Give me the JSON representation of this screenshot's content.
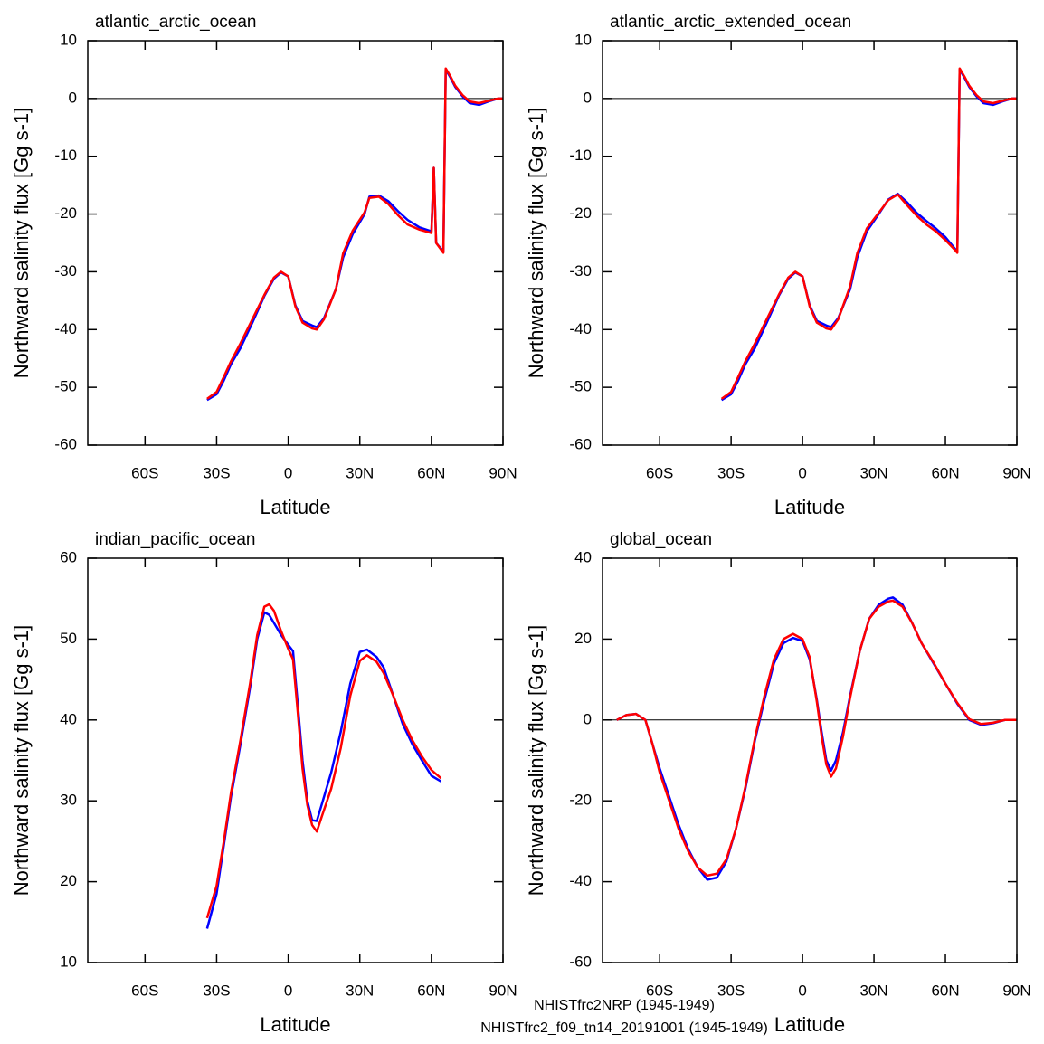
{
  "chart_data": [
    {
      "type": "line",
      "title": "atlantic_arctic_ocean",
      "xlabel": "Latitude",
      "ylabel": "Northward salinity flux [Gg s-1]",
      "x": [
        -34,
        -30,
        -27,
        -24,
        -20,
        -15,
        -10,
        -6,
        -3,
        0,
        3,
        6,
        10,
        12,
        15,
        20,
        23,
        27,
        32,
        34,
        38,
        42,
        46,
        50,
        55,
        60,
        61,
        62,
        65,
        66,
        68,
        70,
        73,
        76,
        80,
        84,
        88,
        90
      ],
      "series": [
        {
          "values": [
            -52.2,
            -51.2,
            -48.8,
            -46,
            -43.2,
            -38.8,
            -34.2,
            -31.2,
            -30.1,
            -30.8,
            -35.8,
            -38.5,
            -39.3,
            -39.6,
            -38,
            -33,
            -27.5,
            -23.5,
            -20,
            -17,
            -16.8,
            -17.8,
            -19.5,
            -21,
            -22.3,
            -23,
            -12,
            -25,
            -26.5,
            5,
            3.6,
            2,
            0.4,
            -0.8,
            -1.1,
            -0.5,
            0,
            0
          ]
        },
        {
          "values": [
            -52,
            -50.8,
            -48.2,
            -45.5,
            -42.4,
            -38.2,
            -34,
            -31,
            -30,
            -30.8,
            -36,
            -38.8,
            -39.8,
            -40,
            -38.2,
            -33,
            -26.8,
            -22.9,
            -19.7,
            -17.2,
            -17,
            -18.3,
            -20.2,
            -21.8,
            -22.7,
            -23.3,
            -12,
            -25,
            -26.7,
            5.2,
            3.8,
            2.2,
            0.6,
            -0.5,
            -0.8,
            -0.4,
            0,
            0
          ]
        }
      ],
      "xlim": [
        -84,
        90
      ],
      "ylim": [
        -60,
        10
      ],
      "xticks": [
        {
          "value": -60,
          "label": "60S"
        },
        {
          "value": -30,
          "label": "30S"
        },
        0,
        {
          "value": 30,
          "label": "30N"
        },
        {
          "value": 60,
          "label": "60N"
        },
        {
          "value": 90,
          "label": "90N"
        }
      ],
      "yticks": [
        -60,
        -50,
        -40,
        -30,
        -20,
        -10,
        0,
        10
      ],
      "reference_line": 0
    },
    {
      "type": "line",
      "title": "atlantic_arctic_extended_ocean",
      "xlabel": "Latitude",
      "ylabel": "Northward salinity flux [Gg s-1]",
      "x": [
        -34,
        -30,
        -27,
        -24,
        -20,
        -15,
        -10,
        -6,
        -3,
        0,
        3,
        6,
        10,
        12,
        15,
        20,
        23,
        27,
        32,
        36,
        40,
        44,
        48,
        52,
        56,
        60,
        64,
        65,
        66,
        68,
        70,
        73,
        76,
        80,
        84,
        88,
        90
      ],
      "series": [
        {
          "values": [
            -52.2,
            -51.2,
            -48.8,
            -46,
            -43.2,
            -38.8,
            -34.2,
            -31.2,
            -30.1,
            -30.8,
            -35.8,
            -38.5,
            -39.3,
            -39.6,
            -38,
            -33,
            -27.5,
            -23,
            -20,
            -17.5,
            -16.5,
            -18,
            -19.8,
            -21.2,
            -22.5,
            -24,
            -26,
            -26.5,
            5,
            3.6,
            2,
            0.4,
            -0.8,
            -1.1,
            -0.5,
            0,
            0
          ]
        },
        {
          "values": [
            -52,
            -50.8,
            -48.2,
            -45.5,
            -42.4,
            -38.2,
            -34,
            -31,
            -30,
            -30.8,
            -36,
            -38.8,
            -39.8,
            -40,
            -38.2,
            -32.5,
            -26.8,
            -22.5,
            -19.8,
            -17.6,
            -16.6,
            -18.5,
            -20.3,
            -21.8,
            -23,
            -24.5,
            -26.2,
            -26.7,
            5.2,
            3.8,
            2.2,
            0.6,
            -0.5,
            -0.8,
            -0.4,
            0,
            0
          ]
        }
      ],
      "xlim": [
        -84,
        90
      ],
      "ylim": [
        -60,
        10
      ],
      "xticks": [
        {
          "value": -60,
          "label": "60S"
        },
        {
          "value": -30,
          "label": "30S"
        },
        0,
        {
          "value": 30,
          "label": "30N"
        },
        {
          "value": 60,
          "label": "60N"
        },
        {
          "value": 90,
          "label": "90N"
        }
      ],
      "yticks": [
        -60,
        -50,
        -40,
        -30,
        -20,
        -10,
        0,
        10
      ],
      "reference_line": 0
    },
    {
      "type": "line",
      "title": "indian_pacific_ocean",
      "xlabel": "Latitude",
      "ylabel": "Northward salinity flux [Gg s-1]",
      "x": [
        -34,
        -30,
        -27,
        -24,
        -20,
        -16,
        -13,
        -10,
        -8,
        -6,
        -3,
        0,
        2,
        4,
        6,
        8,
        10,
        12,
        14,
        18,
        22,
        26,
        30,
        33,
        37,
        40,
        44,
        48,
        52,
        56,
        60,
        64
      ],
      "series": [
        {
          "values": [
            14.2,
            18.5,
            24.5,
            30.5,
            37,
            44,
            50,
            53.3,
            53,
            52,
            50.5,
            49.3,
            48.5,
            42,
            35,
            30,
            27.6,
            27.5,
            29.5,
            33.5,
            38.5,
            44.5,
            48.4,
            48.7,
            47.8,
            46.5,
            43,
            39.5,
            37,
            35,
            33.1,
            32.4
          ]
        },
        {
          "values": [
            15.5,
            19.5,
            25,
            31,
            37.5,
            44.5,
            50.5,
            54,
            54.3,
            53.5,
            51,
            48.8,
            47.5,
            41,
            34,
            29.5,
            27,
            26.2,
            28,
            31.5,
            36.5,
            43,
            47.3,
            48,
            47.2,
            45.8,
            43,
            40,
            37.5,
            35.5,
            33.8,
            32.8
          ]
        }
      ],
      "xlim": [
        -84,
        90
      ],
      "ylim": [
        10,
        60
      ],
      "xticks": [
        {
          "value": -60,
          "label": "60S"
        },
        {
          "value": -30,
          "label": "30S"
        },
        0,
        {
          "value": 30,
          "label": "30N"
        },
        {
          "value": 60,
          "label": "60N"
        },
        {
          "value": 90,
          "label": "90N"
        }
      ],
      "yticks": [
        10,
        20,
        30,
        40,
        50,
        60
      ]
    },
    {
      "type": "line",
      "title": "global_ocean",
      "xlabel": "Latitude",
      "ylabel": "Northward salinity flux [Gg s-1]",
      "x": [
        -78,
        -74,
        -70,
        -66,
        -63,
        -60,
        -56,
        -52,
        -48,
        -44,
        -40,
        -36,
        -32,
        -28,
        -24,
        -20,
        -16,
        -12,
        -8,
        -4,
        0,
        3,
        6,
        8,
        10,
        12,
        14,
        17,
        20,
        24,
        28,
        32,
        36,
        38,
        42,
        46,
        50,
        55,
        60,
        65,
        70,
        75,
        80,
        85,
        90
      ],
      "series": [
        {
          "values": [
            0,
            1.2,
            1.5,
            0,
            -6,
            -12,
            -19,
            -26,
            -32,
            -36.5,
            -39.5,
            -39,
            -35,
            -27,
            -17,
            -5,
            5,
            14,
            19,
            20.3,
            19.5,
            15,
            5,
            -3,
            -10,
            -12.5,
            -10,
            -3,
            6,
            17,
            25,
            28.5,
            30,
            30.3,
            28.5,
            24,
            19,
            14,
            9,
            4,
            0,
            -1.2,
            -0.8,
            0,
            0
          ]
        },
        {
          "values": [
            0,
            1.2,
            1.5,
            0,
            -6,
            -13,
            -20,
            -27,
            -32.5,
            -36.5,
            -38.5,
            -38,
            -34.5,
            -27,
            -16.5,
            -4.5,
            6,
            15,
            20,
            21.3,
            20,
            15.5,
            4.5,
            -4,
            -11,
            -14,
            -12,
            -4,
            5.5,
            17,
            25,
            28,
            29.3,
            29.5,
            28,
            24,
            19,
            14.2,
            9,
            4.2,
            0.2,
            -1,
            -0.7,
            0,
            0
          ]
        }
      ],
      "xlim": [
        -84,
        90
      ],
      "ylim": [
        -60,
        40
      ],
      "xticks": [
        {
          "value": -60,
          "label": "60S"
        },
        {
          "value": -30,
          "label": "30S"
        },
        0,
        {
          "value": 30,
          "label": "30N"
        },
        {
          "value": 60,
          "label": "60N"
        },
        {
          "value": 90,
          "label": "90N"
        }
      ],
      "yticks": [
        -60,
        -40,
        -20,
        0,
        20,
        40
      ],
      "reference_line": 0
    }
  ],
  "legend": [
    {
      "name": "NHISTfrc2NRP (1945-1949)",
      "color": "#0000ff"
    },
    {
      "name": "NHISTfrc2_f09_tn14_20191001 (1945-1949)",
      "color": "#ff0000"
    }
  ]
}
